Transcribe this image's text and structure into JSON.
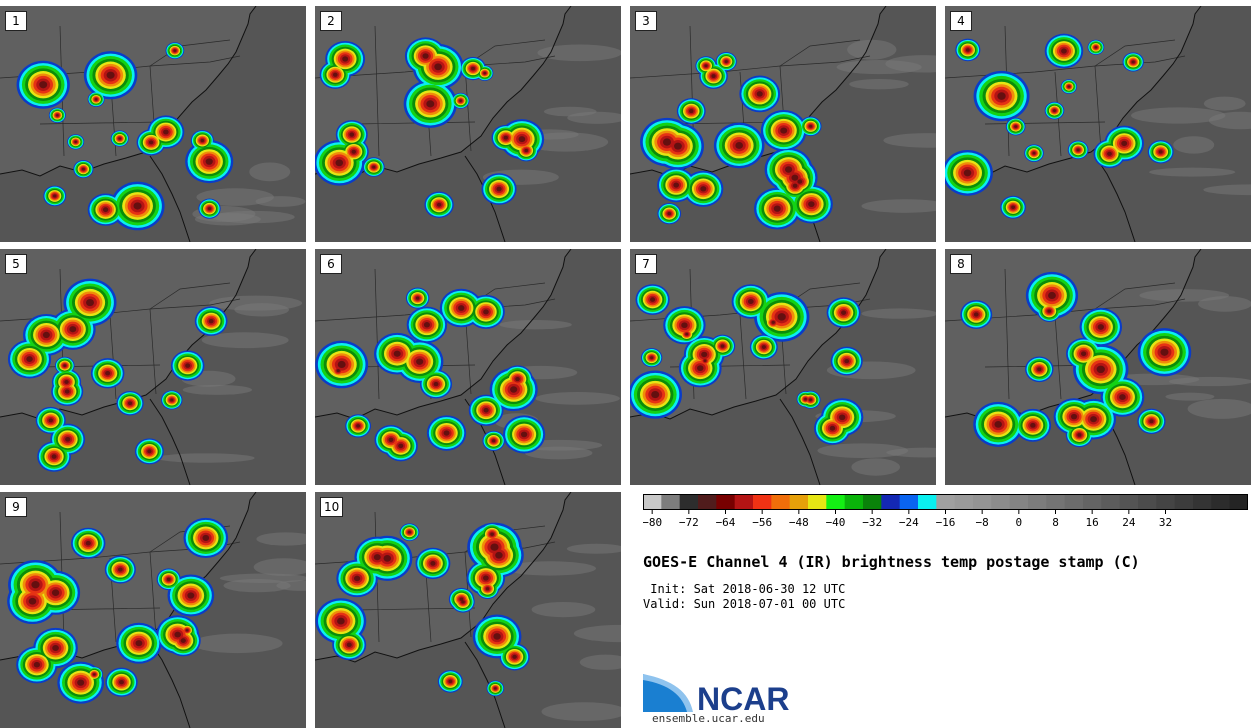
{
  "panels": [
    {
      "label": "1"
    },
    {
      "label": "2"
    },
    {
      "label": "3"
    },
    {
      "label": "4"
    },
    {
      "label": "5"
    },
    {
      "label": "6"
    },
    {
      "label": "7"
    },
    {
      "label": "8"
    },
    {
      "label": "9"
    },
    {
      "label": "10"
    }
  ],
  "colorbar": {
    "tick_labels": [
      "−80",
      "−72",
      "−64",
      "−56",
      "−48",
      "−40",
      "−32",
      "−24",
      "−16",
      "−8",
      "0",
      "8",
      "16",
      "24",
      "32"
    ],
    "colors": [
      "#c8c8c8",
      "#7d7d7d",
      "#2d2d2d",
      "#501c1c",
      "#780000",
      "#b41414",
      "#f03214",
      "#f06e0a",
      "#e6a00a",
      "#e6e614",
      "#14f014",
      "#0ab40a",
      "#0a820a",
      "#1428b4",
      "#0a64f0",
      "#0af0f0",
      "#a0a0a0",
      "#9a9a9a",
      "#949494",
      "#8c8c8c",
      "#848484",
      "#7c7c7c",
      "#747474",
      "#6c6c6c",
      "#646464",
      "#5c5c5c",
      "#545454",
      "#4c4c4c",
      "#444444",
      "#3c3c3c",
      "#343434",
      "#2c2c2c",
      "#242424"
    ]
  },
  "title": "GOES-E Channel 4 (IR) brightness temp postage stamp (C)",
  "init_line": " Init: Sat 2018-06-30 12 UTC",
  "valid_line": "Valid: Sun 2018-07-01 00 UTC",
  "logo": {
    "text": "NCAR",
    "url": "ensemble.ucar.edu"
  }
}
